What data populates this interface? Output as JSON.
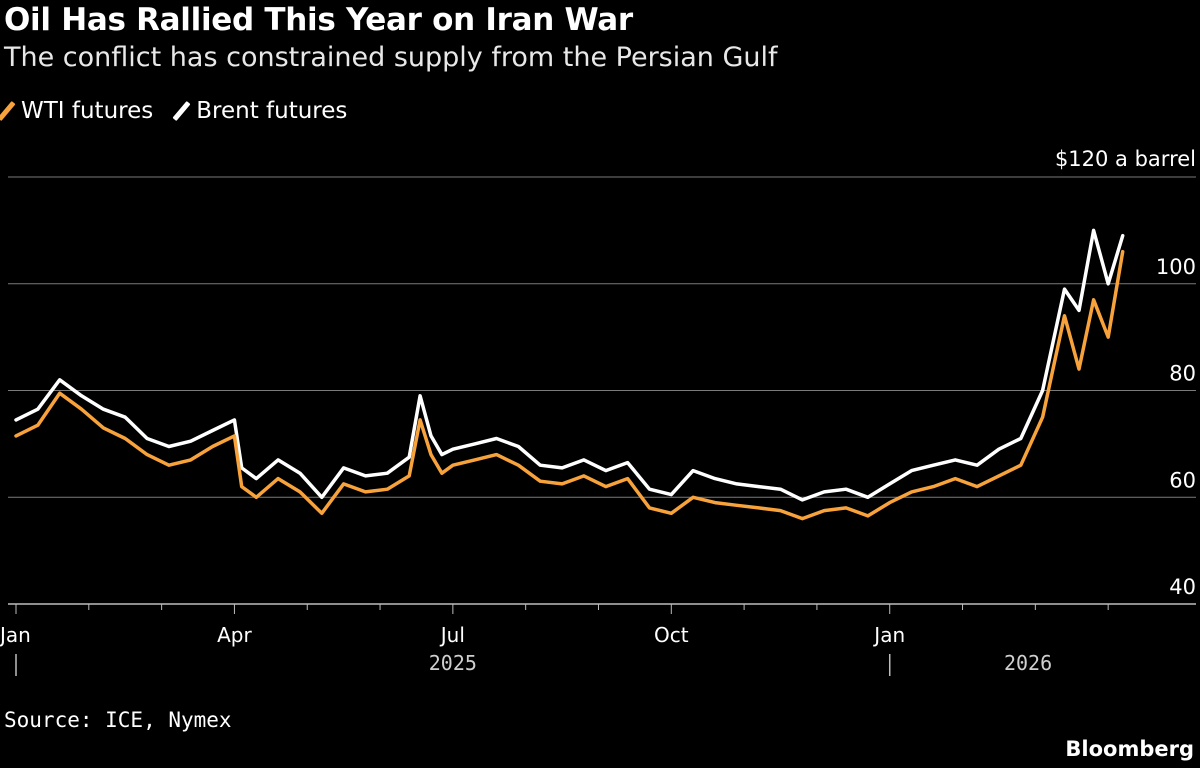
{
  "header": {
    "title": "Oil Has Rallied This Year on Iran War",
    "subtitle": "The conflict has constrained supply from the Persian Gulf"
  },
  "legend": [
    {
      "label": "WTI futures",
      "color": "#f7a23b"
    },
    {
      "label": "Brent futures",
      "color": "#ffffff"
    }
  ],
  "footer": {
    "source": "Source: ICE, Nymex",
    "brand": "Bloomberg"
  },
  "chart_data": {
    "type": "line",
    "title": "Oil Has Rallied This Year on Iran War",
    "subtitle": "The conflict has constrained supply from the Persian Gulf",
    "ylabel": "$120 a barrel",
    "xlabel": "",
    "ylim": [
      40,
      120
    ],
    "yticks": [
      40,
      60,
      80,
      100,
      120
    ],
    "ytick_labels": [
      "40",
      "60",
      "80",
      "100",
      "$120 a barrel"
    ],
    "x_range_months": [
      0,
      15.3
    ],
    "x_ticks": [
      {
        "month": 0,
        "label": "Jan",
        "year": "2025"
      },
      {
        "month": 3,
        "label": "Apr"
      },
      {
        "month": 6,
        "label": "Jul"
      },
      {
        "month": 9,
        "label": "Oct"
      },
      {
        "month": 12,
        "label": "Jan",
        "year": "2026"
      }
    ],
    "year_labels": [
      {
        "month": 6,
        "label": "2025"
      },
      {
        "month": 13.9,
        "label": "2026"
      }
    ],
    "series": [
      {
        "name": "WTI futures",
        "color": "#f7a23b",
        "x_months": [
          0.0,
          0.3,
          0.6,
          0.9,
          1.2,
          1.5,
          1.8,
          2.1,
          2.4,
          2.7,
          3.0,
          3.1,
          3.3,
          3.6,
          3.9,
          4.2,
          4.5,
          4.8,
          5.1,
          5.4,
          5.55,
          5.7,
          5.85,
          6.0,
          6.3,
          6.6,
          6.9,
          7.2,
          7.5,
          7.8,
          8.1,
          8.4,
          8.7,
          9.0,
          9.3,
          9.6,
          9.9,
          10.2,
          10.5,
          10.8,
          11.1,
          11.4,
          11.7,
          12.0,
          12.3,
          12.6,
          12.9,
          13.2,
          13.5,
          13.8,
          14.1,
          14.4,
          14.6,
          14.8,
          15.0,
          15.2
        ],
        "values": [
          71.5,
          73.5,
          79.5,
          76.5,
          73,
          71,
          68,
          66,
          67,
          69.5,
          71.5,
          62,
          60,
          63.5,
          61,
          57,
          62.5,
          61,
          61.5,
          64,
          74.5,
          68,
          64.5,
          66,
          67,
          68,
          66,
          63,
          62.5,
          64,
          62,
          63.5,
          58,
          57,
          60,
          59,
          58.5,
          58,
          57.5,
          56,
          57.5,
          58,
          56.5,
          59,
          61,
          62,
          63.5,
          62,
          64,
          66,
          75,
          94,
          84,
          97,
          90,
          106
        ]
      },
      {
        "name": "Brent futures",
        "color": "#ffffff",
        "x_months": [
          0.0,
          0.3,
          0.6,
          0.9,
          1.2,
          1.5,
          1.8,
          2.1,
          2.4,
          2.7,
          3.0,
          3.1,
          3.3,
          3.6,
          3.9,
          4.2,
          4.5,
          4.8,
          5.1,
          5.4,
          5.55,
          5.7,
          5.85,
          6.0,
          6.3,
          6.6,
          6.9,
          7.2,
          7.5,
          7.8,
          8.1,
          8.4,
          8.7,
          9.0,
          9.3,
          9.6,
          9.9,
          10.2,
          10.5,
          10.8,
          11.1,
          11.4,
          11.7,
          12.0,
          12.3,
          12.6,
          12.9,
          13.2,
          13.5,
          13.8,
          14.1,
          14.4,
          14.6,
          14.8,
          15.0,
          15.2
        ],
        "values": [
          74.5,
          76.5,
          82,
          79,
          76.5,
          75,
          71,
          69.5,
          70.5,
          72.5,
          74.5,
          65.5,
          63.5,
          67,
          64.5,
          60,
          65.5,
          64,
          64.5,
          67.5,
          79,
          71.5,
          68,
          69,
          70,
          71,
          69.5,
          66,
          65.5,
          67,
          65,
          66.5,
          61.5,
          60.5,
          65,
          63.5,
          62.5,
          62,
          61.5,
          59.5,
          61,
          61.5,
          60,
          62.5,
          65,
          66,
          67,
          66,
          69,
          71,
          80,
          99,
          95,
          110,
          100,
          109
        ]
      }
    ]
  }
}
